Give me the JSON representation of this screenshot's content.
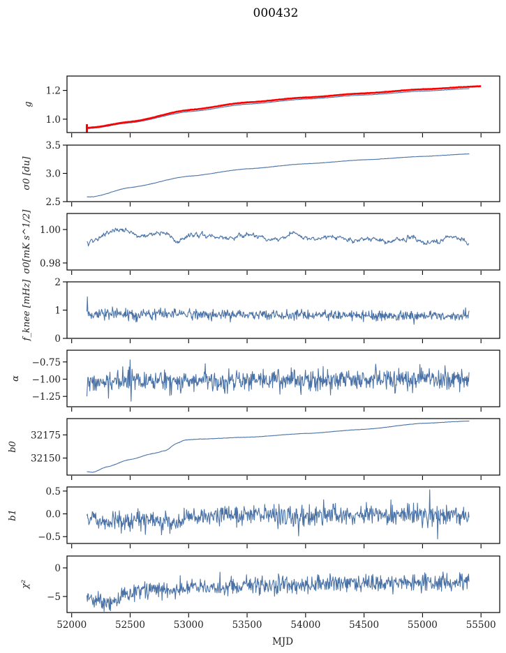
{
  "chart_data": {
    "type": "line",
    "title": "000432",
    "xlabel": "MJD",
    "xlim": [
      51960,
      55660
    ],
    "xticks": [
      52000,
      52500,
      53000,
      53500,
      54000,
      54500,
      55000,
      55500
    ],
    "xtick_labels": [
      "52000",
      "52500",
      "53000",
      "53500",
      "54000",
      "54500",
      "55000",
      "55500"
    ],
    "x_range_data": [
      52130,
      55400
    ],
    "grid": false,
    "colors": {
      "series": "#4a72a6",
      "reference": "#ff0000",
      "axes": "#000000"
    },
    "panels": [
      {
        "id": "g",
        "ylabel": "g",
        "ylim": [
          0.907,
          1.3
        ],
        "yticks": [
          1.0,
          1.2
        ],
        "ytick_labels": [
          "1.0",
          "1.2"
        ],
        "series": [
          {
            "name": "g",
            "kind": "smooth",
            "anchors_x": [
              52130,
              52170,
              52500,
              53000,
              53500,
              54000,
              54500,
              55000,
              55400
            ],
            "anchors_y": [
              0.935,
              0.936,
              0.975,
              1.052,
              1.104,
              1.14,
              1.168,
              1.195,
              1.212
            ]
          },
          {
            "name": "g_reference",
            "kind": "smooth",
            "color_key": "reference",
            "anchors_x": [
              52130,
              52170,
              52500,
              53000,
              53500,
              54000,
              54500,
              55000,
              55500
            ],
            "anchors_y": [
              0.94,
              0.942,
              0.982,
              1.064,
              1.117,
              1.151,
              1.18,
              1.208,
              1.229
            ],
            "errorbar_at_start": {
              "x": 52130,
              "low": 0.905,
              "high": 0.965
            }
          }
        ]
      },
      {
        "id": "sigma0_du",
        "ylabel": "σ0 [du]",
        "ylim": [
          2.5,
          3.5
        ],
        "yticks": [
          2.5,
          3.0,
          3.5
        ],
        "ytick_labels": [
          "2.5",
          "3.0",
          "3.5"
        ],
        "series": [
          {
            "name": "sigma0_du",
            "kind": "smooth",
            "anchors_x": [
              52130,
              52180,
              52500,
              53000,
              53500,
              54000,
              54500,
              55000,
              55400
            ],
            "anchors_y": [
              2.585,
              2.585,
              2.75,
              2.95,
              3.08,
              3.17,
              3.24,
              3.3,
              3.345
            ]
          }
        ]
      },
      {
        "id": "sigma0_mK",
        "ylabel": "σ0[mK s^1/2]",
        "ylim": [
          0.9758,
          1.0096
        ],
        "yticks": [
          0.98,
          1.0
        ],
        "ytick_labels": [
          "0.98",
          "1.00"
        ],
        "series": [
          {
            "name": "sigma0_mK",
            "kind": "wavy",
            "anchors_x": [
              52130,
              52150,
              52300,
              52420,
              52600,
              52770,
              52920,
              53050,
              53200,
              53350,
              53550,
              53700,
              53900,
              54050,
              54200,
              54400,
              54550,
              54700,
              54900,
              55050,
              55250,
              55350,
              55400
            ],
            "anchors_y": [
              0.9925,
              0.9925,
              0.9975,
              1.0005,
              0.996,
              0.9985,
              0.9935,
              0.9972,
              0.9958,
              0.995,
              0.9968,
              0.994,
              0.9975,
              0.9942,
              0.9955,
              0.9932,
              0.995,
              0.9925,
              0.9955,
              0.9918,
              0.996,
              0.994,
              0.9915
            ],
            "noise": 0.0006
          }
        ]
      },
      {
        "id": "fknee",
        "ylabel": "f_knee [mHz]",
        "ylim": [
          0,
          2
        ],
        "yticks": [
          0,
          1,
          2
        ],
        "ytick_labels": [
          "0",
          "1",
          "2"
        ],
        "series": [
          {
            "name": "fknee",
            "kind": "noisy",
            "mean_start": 0.88,
            "mean_end": 0.78,
            "noise": 0.09,
            "spikes": [
              {
                "x": 52135,
                "y": 1.47
              }
            ]
          }
        ]
      },
      {
        "id": "alpha",
        "ylabel": "α",
        "ylim": [
          -1.4,
          -0.58
        ],
        "yticks": [
          -1.25,
          -1.0,
          -0.75
        ],
        "ytick_labels": [
          "−1.25",
          "−1.00",
          "−0.75"
        ],
        "series": [
          {
            "name": "alpha",
            "kind": "noisy",
            "mean_start": -1.04,
            "mean_end": -1.0,
            "noise": 0.075,
            "spikes": [
              {
                "x": 52130,
                "y": -1.25
              },
              {
                "x": 52500,
                "y": -0.72
              },
              {
                "x": 52510,
                "y": -1.32
              }
            ]
          }
        ]
      },
      {
        "id": "b0",
        "ylabel": "b0",
        "ylim": [
          32131.6,
          32192.6
        ],
        "yticks": [
          32150,
          32175
        ],
        "ytick_labels": [
          "32150",
          "32175"
        ],
        "series": [
          {
            "name": "b0",
            "kind": "smooth",
            "anchors_x": [
              52130,
              52180,
              52300,
              52500,
              52700,
              52800,
              52900,
              52970,
              53100,
              53500,
              54000,
              54500,
              55000,
              55400
            ],
            "anchors_y": [
              32135.3,
              32134.6,
              32140.5,
              32148.5,
              32155,
              32158,
              32166,
              32169.5,
              32170.5,
              32172.5,
              32176.5,
              32181,
              32187.5,
              32190
            ]
          }
        ]
      },
      {
        "id": "b1",
        "ylabel": "b1",
        "ylim": [
          -0.65,
          0.59
        ],
        "yticks": [
          -0.5,
          0.0,
          0.5
        ],
        "ytick_labels": [
          "−0.5",
          "0.0",
          "0.5"
        ],
        "series": [
          {
            "name": "b1",
            "kind": "wavynoisy",
            "anchors_x": [
              52130,
              52250,
              52500,
              52750,
              52900,
              53000,
              53500,
              54000,
              54500,
              55000,
              55400
            ],
            "anchors_y": [
              0.0,
              -0.22,
              -0.12,
              -0.15,
              -0.25,
              -0.05,
              -0.02,
              -0.05,
              -0.02,
              -0.02,
              -0.04
            ],
            "noise": 0.11,
            "spikes": [
              {
                "x": 55060,
                "y": 0.53
              },
              {
                "x": 55130,
                "y": -0.55
              },
              {
                "x": 55400,
                "y": 0.38
              }
            ]
          }
        ]
      },
      {
        "id": "chi2",
        "ylabel": "χ²",
        "ylim": [
          -7.8,
          2.07
        ],
        "yticks": [
          -5,
          0
        ],
        "ytick_labels": [
          "−5",
          "0"
        ],
        "series": [
          {
            "name": "chi2",
            "kind": "wavynoisy",
            "anchors_x": [
              52130,
              52300,
              52500,
              52700,
              52900,
              53100,
              53500,
              54000,
              54500,
              55000,
              55400
            ],
            "anchors_y": [
              -5.0,
              -6.3,
              -4.5,
              -3.7,
              -4.0,
              -3.3,
              -3.2,
              -3.0,
              -2.6,
              -2.6,
              -2.3
            ],
            "noise": 0.75
          }
        ]
      }
    ]
  }
}
